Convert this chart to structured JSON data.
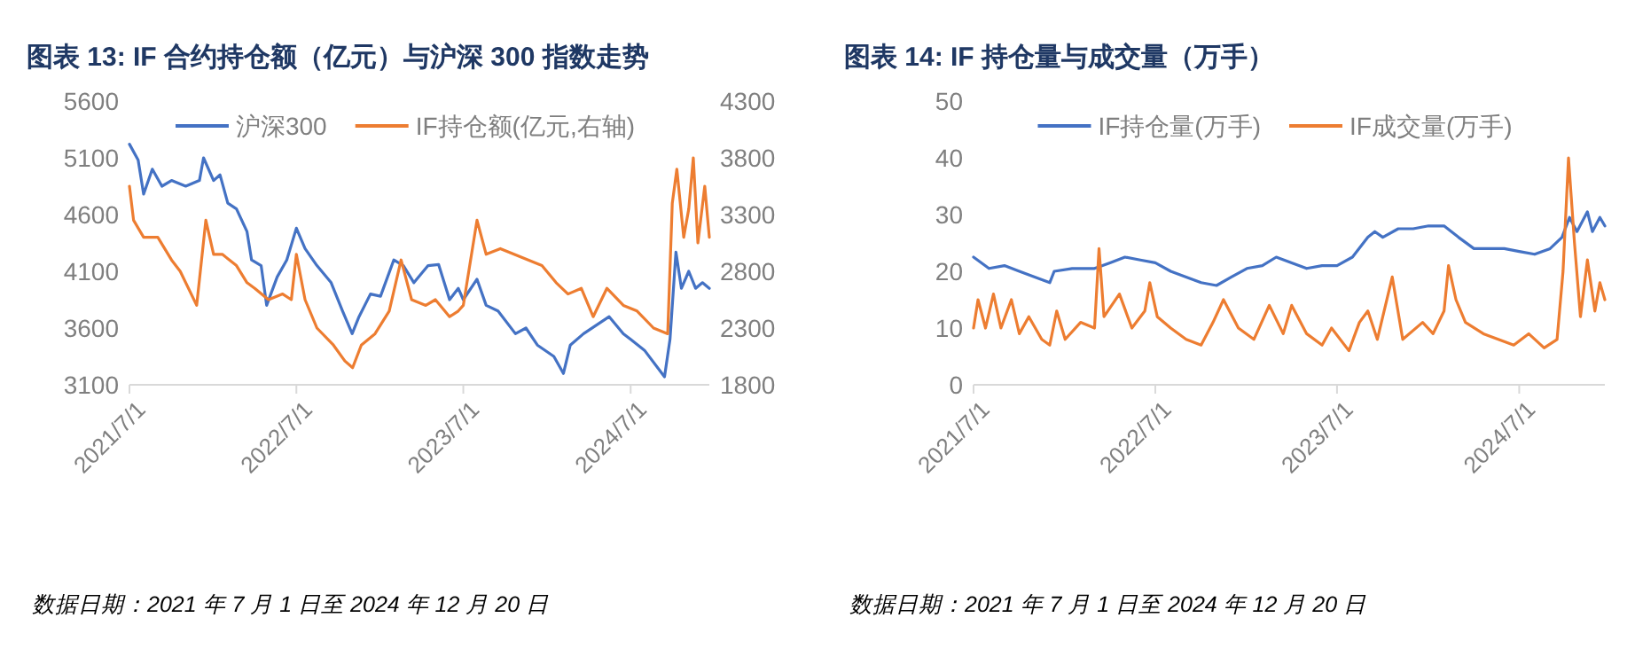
{
  "chart_data": [
    {
      "type": "line",
      "title": "图表 13:   IF 合约持仓额（亿元）与沪深 300 指数走势",
      "annotations": [
        "数据日期：2021 年 7 月 1 日至 2024 年 12 月 20 日"
      ],
      "legend": "top",
      "grid": false,
      "xlim": [
        "2021-07-01",
        "2024-12-20"
      ],
      "xticks": [
        {
          "value": "2021-07-01",
          "label": "2021/7/1"
        },
        {
          "value": "2022-07-01",
          "label": "2022/7/1"
        },
        {
          "value": "2023-07-01",
          "label": "2023/7/1"
        },
        {
          "value": "2024-07-01",
          "label": "2024/7/1"
        }
      ],
      "ylim": [
        3100,
        5600
      ],
      "yticks": [
        3100,
        3600,
        4100,
        4600,
        5100,
        5600
      ],
      "y2lim": [
        1800,
        4300
      ],
      "y2ticks": [
        1800,
        2300,
        2800,
        3300,
        3800,
        4300
      ],
      "series": [
        {
          "name": "沪深300",
          "color": "#4472c4",
          "x": [
            "2021-07-01",
            "2021-07-20",
            "2021-08-01",
            "2021-08-20",
            "2021-09-10",
            "2021-10-01",
            "2021-11-01",
            "2021-12-01",
            "2021-12-10",
            "2022-01-01",
            "2022-01-15",
            "2022-02-01",
            "2022-02-20",
            "2022-03-15",
            "2022-03-25",
            "2022-04-15",
            "2022-04-27",
            "2022-05-20",
            "2022-06-10",
            "2022-07-01",
            "2022-07-20",
            "2022-08-15",
            "2022-09-15",
            "2022-10-10",
            "2022-10-31",
            "2022-11-15",
            "2022-12-10",
            "2023-01-01",
            "2023-01-30",
            "2023-02-20",
            "2023-03-15",
            "2023-04-15",
            "2023-05-08",
            "2023-06-01",
            "2023-06-20",
            "2023-07-01",
            "2023-07-31",
            "2023-08-20",
            "2023-09-15",
            "2023-10-23",
            "2023-11-15",
            "2023-12-10",
            "2024-01-15",
            "2024-02-05",
            "2024-02-20",
            "2024-03-20",
            "2024-05-15",
            "2024-06-15",
            "2024-07-01",
            "2024-08-01",
            "2024-09-13",
            "2024-09-25",
            "2024-10-08",
            "2024-10-20",
            "2024-11-05",
            "2024-11-20",
            "2024-12-05",
            "2024-12-20"
          ],
          "values": [
            5220,
            5080,
            4780,
            5000,
            4850,
            4900,
            4850,
            4900,
            5100,
            4900,
            4950,
            4700,
            4650,
            4450,
            4200,
            4150,
            3800,
            4050,
            4200,
            4480,
            4300,
            4150,
            4000,
            3750,
            3550,
            3700,
            3900,
            3880,
            4200,
            4150,
            4000,
            4150,
            4160,
            3850,
            3950,
            3850,
            4030,
            3800,
            3750,
            3550,
            3600,
            3450,
            3350,
            3200,
            3450,
            3550,
            3700,
            3550,
            3500,
            3400,
            3170,
            3500,
            4270,
            3950,
            4100,
            3950,
            4000,
            3950
          ]
        },
        {
          "name": "IF持仓额(亿元,右轴)",
          "color": "#ed7d31",
          "axis": "y2",
          "x": [
            "2021-07-01",
            "2021-07-10",
            "2021-08-01",
            "2021-09-01",
            "2021-10-01",
            "2021-10-20",
            "2021-11-25",
            "2021-12-15",
            "2022-01-01",
            "2022-01-20",
            "2022-02-20",
            "2022-03-15",
            "2022-04-01",
            "2022-05-01",
            "2022-06-01",
            "2022-06-20",
            "2022-07-01",
            "2022-07-20",
            "2022-08-15",
            "2022-09-20",
            "2022-10-15",
            "2022-11-01",
            "2022-11-20",
            "2022-12-20",
            "2023-01-20",
            "2023-02-15",
            "2023-03-10",
            "2023-04-10",
            "2023-05-01",
            "2023-06-01",
            "2023-06-20",
            "2023-07-01",
            "2023-07-31",
            "2023-08-20",
            "2023-09-20",
            "2023-10-20",
            "2023-11-20",
            "2023-12-20",
            "2024-01-20",
            "2024-02-15",
            "2024-03-15",
            "2024-04-10",
            "2024-05-10",
            "2024-06-15",
            "2024-07-15",
            "2024-08-20",
            "2024-09-20",
            "2024-09-30",
            "2024-10-10",
            "2024-10-25",
            "2024-11-05",
            "2024-11-15",
            "2024-11-25",
            "2024-12-10",
            "2024-12-20"
          ],
          "values": [
            3550,
            3250,
            3100,
            3100,
            2900,
            2800,
            2500,
            3250,
            2950,
            2950,
            2850,
            2700,
            2650,
            2550,
            2600,
            2550,
            2950,
            2550,
            2300,
            2150,
            2010,
            1950,
            2150,
            2250,
            2450,
            2900,
            2550,
            2500,
            2550,
            2400,
            2450,
            2500,
            3250,
            2950,
            3000,
            2950,
            2900,
            2850,
            2700,
            2600,
            2650,
            2400,
            2650,
            2500,
            2450,
            2300,
            2250,
            3400,
            3700,
            3100,
            3350,
            3800,
            3050,
            3550,
            3100
          ]
        }
      ]
    },
    {
      "type": "line",
      "title": "图表 14:  IF 持仓量与成交量（万手）",
      "annotations": [
        "数据日期：2021 年 7 月 1 日至 2024 年 12 月 20 日"
      ],
      "legend": "top",
      "grid": false,
      "xlim": [
        "2021-07-01",
        "2024-12-20"
      ],
      "xticks": [
        {
          "value": "2021-07-01",
          "label": "2021/7/1"
        },
        {
          "value": "2022-07-01",
          "label": "2022/7/1"
        },
        {
          "value": "2023-07-01",
          "label": "2023/7/1"
        },
        {
          "value": "2024-07-01",
          "label": "2024/7/1"
        }
      ],
      "ylim": [
        0,
        50
      ],
      "yticks": [
        0,
        10,
        20,
        30,
        40,
        50
      ],
      "series": [
        {
          "name": "IF持仓量(万手)",
          "color": "#4472c4",
          "x": [
            "2021-07-01",
            "2021-08-01",
            "2021-09-01",
            "2021-10-01",
            "2021-11-01",
            "2021-12-01",
            "2021-12-10",
            "2022-01-15",
            "2022-03-01",
            "2022-04-01",
            "2022-05-01",
            "2022-06-01",
            "2022-07-01",
            "2022-08-01",
            "2022-09-01",
            "2022-10-01",
            "2022-11-01",
            "2022-12-01",
            "2023-01-01",
            "2023-02-01",
            "2023-03-01",
            "2023-04-01",
            "2023-05-01",
            "2023-06-01",
            "2023-07-01",
            "2023-08-01",
            "2023-09-01",
            "2023-09-15",
            "2023-10-01",
            "2023-11-01",
            "2023-12-01",
            "2024-01-01",
            "2024-02-01",
            "2024-03-01",
            "2024-04-01",
            "2024-05-01",
            "2024-06-01",
            "2024-07-01",
            "2024-08-01",
            "2024-09-01",
            "2024-09-25",
            "2024-10-10",
            "2024-10-25",
            "2024-11-15",
            "2024-11-25",
            "2024-12-10",
            "2024-12-20"
          ],
          "values": [
            22.5,
            20.5,
            21,
            20,
            19,
            18,
            20,
            20.5,
            20.5,
            21.5,
            22.5,
            22,
            21.5,
            20,
            19,
            18,
            17.5,
            19,
            20.5,
            21,
            22.5,
            21.5,
            20.5,
            21,
            21,
            22.5,
            26,
            27,
            26,
            27.5,
            27.5,
            28,
            28,
            26,
            24,
            24,
            24,
            23.5,
            23,
            24,
            26,
            29.5,
            27,
            30.5,
            27,
            29.5,
            28
          ]
        },
        {
          "name": "IF成交量(万手)",
          "color": "#ed7d31",
          "x": [
            "2021-07-01",
            "2021-07-10",
            "2021-07-25",
            "2021-08-10",
            "2021-08-25",
            "2021-09-15",
            "2021-10-01",
            "2021-10-20",
            "2021-11-15",
            "2021-12-01",
            "2021-12-15",
            "2022-01-01",
            "2022-02-01",
            "2022-03-01",
            "2022-03-10",
            "2022-03-20",
            "2022-04-20",
            "2022-05-15",
            "2022-06-10",
            "2022-06-20",
            "2022-07-05",
            "2022-08-01",
            "2022-09-01",
            "2022-10-01",
            "2022-10-25",
            "2022-11-15",
            "2022-12-15",
            "2023-01-15",
            "2023-02-15",
            "2023-03-15",
            "2023-04-01",
            "2023-05-01",
            "2023-06-01",
            "2023-06-20",
            "2023-07-25",
            "2023-08-15",
            "2023-09-01",
            "2023-09-20",
            "2023-10-20",
            "2023-11-10",
            "2023-12-20",
            "2024-01-10",
            "2024-02-01",
            "2024-02-10",
            "2024-02-25",
            "2024-03-15",
            "2024-04-20",
            "2024-05-20",
            "2024-06-20",
            "2024-07-20",
            "2024-08-20",
            "2024-09-15",
            "2024-09-27",
            "2024-10-08",
            "2024-10-20",
            "2024-11-01",
            "2024-11-15",
            "2024-11-30",
            "2024-12-10",
            "2024-12-20"
          ],
          "values": [
            10,
            15,
            10,
            16,
            10,
            15,
            9,
            12,
            8,
            7,
            13,
            8,
            11,
            10,
            24,
            12,
            16,
            10,
            13,
            18,
            12,
            10,
            8,
            7,
            11,
            15,
            10,
            8,
            14,
            9,
            14,
            9,
            7,
            10,
            6,
            11,
            13,
            8,
            19,
            8,
            11,
            9,
            13,
            21,
            15,
            11,
            9,
            8,
            7,
            9,
            6.5,
            8,
            20,
            40,
            25,
            12,
            22,
            13,
            18,
            15
          ]
        }
      ]
    }
  ]
}
